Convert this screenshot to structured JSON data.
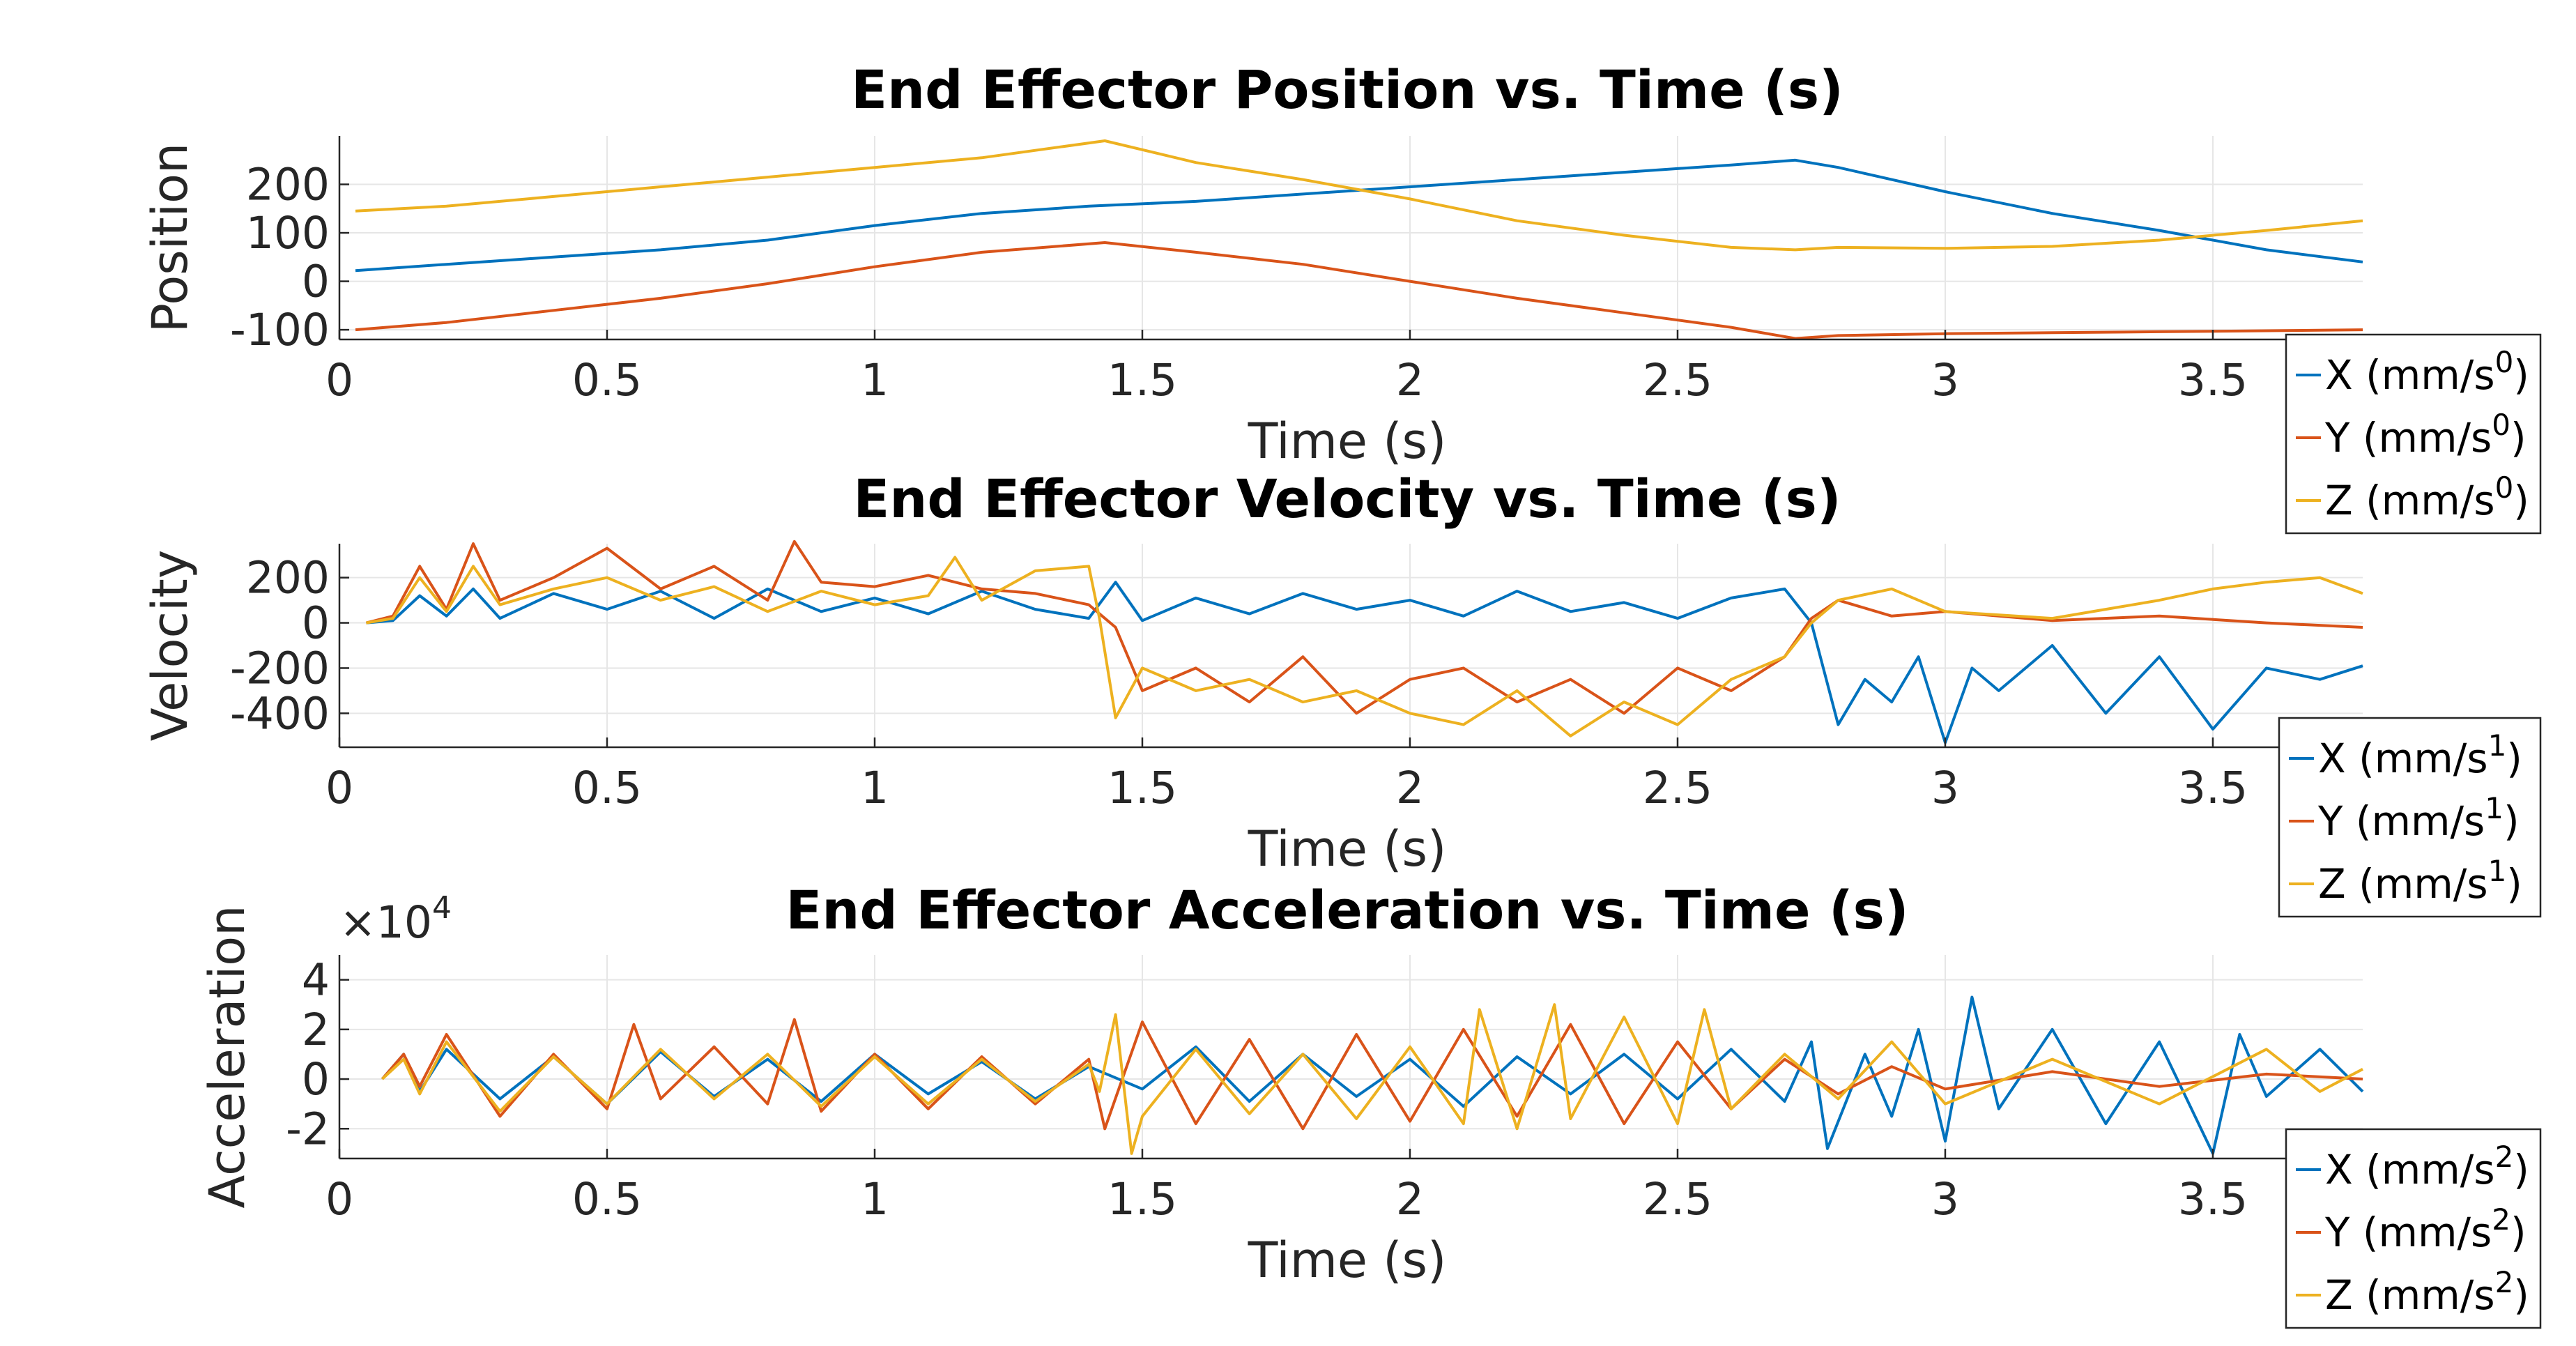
{
  "chart_data": [
    {
      "type": "line",
      "title": "End Effector Position vs. Time (s)",
      "xlabel": "Time (s)",
      "ylabel": "Position",
      "xlim": [
        0,
        3.78
      ],
      "ylim": [
        -120,
        300
      ],
      "xticks": [
        0,
        0.5,
        1,
        1.5,
        2,
        2.5,
        3,
        3.5
      ],
      "xtick_labels": [
        "0",
        "0.5",
        "1",
        "1.5",
        "2",
        "2.5",
        "3",
        "3.5"
      ],
      "yticks": [
        -100,
        0,
        100,
        200
      ],
      "ytick_labels": [
        "-100",
        "0",
        "100",
        "200"
      ],
      "exponent": "",
      "grid": true,
      "legend_position": "bottom-right-outside",
      "series": [
        {
          "label": "X (mm/s",
          "sup": "0",
          "color": "#0072BD",
          "x": [
            0.03,
            0.2,
            0.4,
            0.6,
            0.8,
            1.0,
            1.2,
            1.4,
            1.6,
            1.8,
            2.0,
            2.2,
            2.4,
            2.6,
            2.72,
            2.8,
            3.0,
            3.2,
            3.4,
            3.6,
            3.78
          ],
          "y": [
            22,
            35,
            50,
            65,
            85,
            115,
            140,
            155,
            165,
            180,
            195,
            210,
            225,
            240,
            250,
            235,
            185,
            140,
            105,
            65,
            40
          ]
        },
        {
          "label": "Y (mm/s",
          "sup": "0",
          "color": "#D95319",
          "x": [
            0.03,
            0.2,
            0.4,
            0.6,
            0.8,
            1.0,
            1.2,
            1.43,
            1.6,
            1.8,
            2.0,
            2.2,
            2.4,
            2.6,
            2.72,
            2.8,
            3.0,
            3.2,
            3.4,
            3.6,
            3.78
          ],
          "y": [
            -100,
            -85,
            -60,
            -35,
            -5,
            30,
            60,
            80,
            60,
            35,
            0,
            -35,
            -65,
            -95,
            -118,
            -112,
            -108,
            -106,
            -104,
            -102,
            -100
          ]
        },
        {
          "label": "Z (mm/s",
          "sup": "0",
          "color": "#EDB120",
          "x": [
            0.03,
            0.2,
            0.4,
            0.6,
            0.8,
            1.0,
            1.2,
            1.43,
            1.6,
            1.8,
            2.0,
            2.2,
            2.4,
            2.6,
            2.72,
            2.8,
            3.0,
            3.2,
            3.4,
            3.6,
            3.78
          ],
          "y": [
            145,
            155,
            175,
            195,
            215,
            235,
            255,
            290,
            245,
            210,
            170,
            125,
            95,
            70,
            65,
            70,
            68,
            72,
            85,
            105,
            125
          ]
        }
      ]
    },
    {
      "type": "line",
      "title": "End Effector Velocity vs. Time (s)",
      "xlabel": "Time (s)",
      "ylabel": "Velocity",
      "xlim": [
        0,
        3.78
      ],
      "ylim": [
        -550,
        350
      ],
      "xticks": [
        0,
        0.5,
        1,
        1.5,
        2,
        2.5,
        3,
        3.5
      ],
      "xtick_labels": [
        "0",
        "0.5",
        "1",
        "1.5",
        "2",
        "2.5",
        "3",
        "3.5"
      ],
      "yticks": [
        -400,
        -200,
        0,
        200
      ],
      "ytick_labels": [
        "-400",
        "-200",
        "0",
        "200"
      ],
      "exponent": "",
      "grid": true,
      "legend_position": "bottom-right-outside",
      "series": [
        {
          "label": "X (mm/s",
          "sup": "1",
          "color": "#0072BD",
          "x": [
            0.05,
            0.1,
            0.15,
            0.2,
            0.25,
            0.3,
            0.4,
            0.5,
            0.6,
            0.7,
            0.8,
            0.9,
            1.0,
            1.1,
            1.2,
            1.3,
            1.4,
            1.45,
            1.5,
            1.6,
            1.7,
            1.8,
            1.9,
            2.0,
            2.1,
            2.2,
            2.3,
            2.4,
            2.5,
            2.6,
            2.7,
            2.75,
            2.8,
            2.85,
            2.9,
            2.95,
            3.0,
            3.05,
            3.1,
            3.2,
            3.3,
            3.4,
            3.5,
            3.6,
            3.7,
            3.78
          ],
          "y": [
            0,
            10,
            120,
            30,
            150,
            20,
            130,
            60,
            140,
            20,
            150,
            50,
            110,
            40,
            140,
            60,
            20,
            180,
            10,
            110,
            40,
            130,
            60,
            100,
            30,
            140,
            50,
            90,
            20,
            110,
            150,
            0,
            -450,
            -250,
            -350,
            -150,
            -530,
            -200,
            -300,
            -100,
            -400,
            -150,
            -470,
            -200,
            -250,
            -190
          ]
        },
        {
          "label": "Y (mm/s",
          "sup": "1",
          "color": "#D95319",
          "x": [
            0.05,
            0.1,
            0.15,
            0.2,
            0.25,
            0.3,
            0.4,
            0.5,
            0.6,
            0.7,
            0.8,
            0.85,
            0.9,
            1.0,
            1.1,
            1.2,
            1.3,
            1.4,
            1.45,
            1.5,
            1.6,
            1.7,
            1.8,
            1.9,
            2.0,
            2.1,
            2.2,
            2.3,
            2.4,
            2.5,
            2.6,
            2.7,
            2.75,
            2.8,
            2.9,
            3.0,
            3.2,
            3.4,
            3.6,
            3.78
          ],
          "y": [
            0,
            30,
            250,
            60,
            350,
            100,
            200,
            330,
            150,
            250,
            100,
            360,
            180,
            160,
            210,
            150,
            130,
            80,
            -20,
            -300,
            -200,
            -350,
            -150,
            -400,
            -250,
            -200,
            -350,
            -250,
            -400,
            -200,
            -300,
            -150,
            20,
            100,
            30,
            50,
            10,
            30,
            0,
            -20
          ]
        },
        {
          "label": "Z (mm/s",
          "sup": "1",
          "color": "#EDB120",
          "x": [
            0.05,
            0.1,
            0.15,
            0.2,
            0.25,
            0.3,
            0.4,
            0.5,
            0.6,
            0.7,
            0.8,
            0.9,
            1.0,
            1.1,
            1.15,
            1.2,
            1.3,
            1.4,
            1.42,
            1.45,
            1.5,
            1.6,
            1.7,
            1.8,
            1.9,
            2.0,
            2.1,
            2.2,
            2.3,
            2.4,
            2.5,
            2.6,
            2.7,
            2.75,
            2.8,
            2.9,
            3.0,
            3.2,
            3.4,
            3.5,
            3.6,
            3.7,
            3.78
          ],
          "y": [
            0,
            20,
            200,
            50,
            250,
            80,
            150,
            200,
            100,
            160,
            50,
            140,
            80,
            120,
            290,
            100,
            230,
            250,
            20,
            -420,
            -200,
            -300,
            -250,
            -350,
            -300,
            -400,
            -450,
            -300,
            -500,
            -350,
            -450,
            -250,
            -150,
            0,
            100,
            150,
            50,
            20,
            100,
            150,
            180,
            200,
            130
          ]
        }
      ]
    },
    {
      "type": "line",
      "title": "End Effector Acceleration vs. Time (s)",
      "xlabel": "Time (s)",
      "ylabel": "Acceleration",
      "xlim": [
        0,
        3.78
      ],
      "ylim": [
        -3.2,
        5.0
      ],
      "xticks": [
        0,
        0.5,
        1,
        1.5,
        2,
        2.5,
        3,
        3.5
      ],
      "xtick_labels": [
        "0",
        "0.5",
        "1",
        "1.5",
        "2",
        "2.5",
        "3",
        "3.5"
      ],
      "yticks": [
        -2,
        0,
        2,
        4
      ],
      "ytick_labels": [
        "-2",
        "0",
        "2",
        "4"
      ],
      "exponent": "4",
      "grid": true,
      "legend_position": "bottom-right-outside",
      "series": [
        {
          "label": "X (mm/s",
          "sup": "2",
          "color": "#0072BD",
          "x": [
            0.08,
            0.12,
            0.15,
            0.2,
            0.3,
            0.4,
            0.5,
            0.6,
            0.7,
            0.8,
            0.9,
            1.0,
            1.1,
            1.2,
            1.3,
            1.4,
            1.5,
            1.6,
            1.7,
            1.8,
            1.9,
            2.0,
            2.1,
            2.2,
            2.3,
            2.4,
            2.5,
            2.6,
            2.7,
            2.75,
            2.78,
            2.85,
            2.9,
            2.95,
            3.0,
            3.05,
            3.1,
            3.2,
            3.3,
            3.4,
            3.5,
            3.55,
            3.6,
            3.7,
            3.78
          ],
          "y": [
            0,
            1.0,
            -0.5,
            1.2,
            -0.8,
            0.9,
            -1.0,
            1.1,
            -0.7,
            0.8,
            -0.9,
            1.0,
            -0.6,
            0.7,
            -0.8,
            0.5,
            -0.4,
            1.3,
            -0.9,
            1.0,
            -0.7,
            0.8,
            -1.1,
            0.9,
            -0.6,
            1.0,
            -0.8,
            1.2,
            -0.9,
            1.5,
            -2.8,
            1.0,
            -1.5,
            2.0,
            -2.5,
            3.3,
            -1.2,
            2.0,
            -1.8,
            1.5,
            -3.0,
            1.8,
            -0.7,
            1.2,
            -0.5
          ]
        },
        {
          "label": "Y (mm/s",
          "sup": "2",
          "color": "#D95319",
          "x": [
            0.08,
            0.12,
            0.15,
            0.2,
            0.3,
            0.4,
            0.5,
            0.55,
            0.6,
            0.7,
            0.8,
            0.85,
            0.9,
            1.0,
            1.1,
            1.2,
            1.3,
            1.4,
            1.43,
            1.5,
            1.6,
            1.7,
            1.8,
            1.9,
            2.0,
            2.1,
            2.2,
            2.3,
            2.4,
            2.5,
            2.6,
            2.7,
            2.8,
            2.9,
            3.0,
            3.2,
            3.4,
            3.6,
            3.78
          ],
          "y": [
            0,
            1.0,
            -0.3,
            1.8,
            -1.5,
            1.0,
            -1.2,
            2.2,
            -0.8,
            1.3,
            -1.0,
            2.4,
            -1.3,
            1.0,
            -1.2,
            0.9,
            -1.0,
            0.8,
            -2.0,
            2.3,
            -1.8,
            1.6,
            -2.0,
            1.8,
            -1.7,
            2.0,
            -1.5,
            2.2,
            -1.8,
            1.5,
            -1.2,
            0.8,
            -0.6,
            0.5,
            -0.4,
            0.3,
            -0.3,
            0.2,
            0
          ]
        },
        {
          "label": "Z (mm/s",
          "sup": "2",
          "color": "#EDB120",
          "x": [
            0.08,
            0.12,
            0.15,
            0.2,
            0.3,
            0.4,
            0.5,
            0.6,
            0.7,
            0.8,
            0.9,
            1.0,
            1.1,
            1.2,
            1.3,
            1.4,
            1.42,
            1.45,
            1.48,
            1.5,
            1.6,
            1.7,
            1.8,
            1.9,
            2.0,
            2.1,
            2.13,
            2.2,
            2.27,
            2.3,
            2.4,
            2.5,
            2.55,
            2.6,
            2.7,
            2.8,
            2.9,
            3.0,
            3.2,
            3.4,
            3.6,
            3.7,
            3.78
          ],
          "y": [
            0,
            0.8,
            -0.6,
            1.5,
            -1.3,
            0.9,
            -1.0,
            1.2,
            -0.8,
            1.0,
            -1.1,
            0.9,
            -1.0,
            0.8,
            -0.9,
            0.6,
            -0.5,
            2.6,
            -3.0,
            -1.5,
            1.2,
            -1.4,
            1.0,
            -1.6,
            1.3,
            -1.8,
            2.8,
            -2.0,
            3.0,
            -1.6,
            2.5,
            -1.8,
            2.8,
            -1.2,
            1.0,
            -0.8,
            1.5,
            -1.0,
            0.8,
            -1.0,
            1.2,
            -0.5,
            0.4
          ]
        }
      ]
    }
  ]
}
